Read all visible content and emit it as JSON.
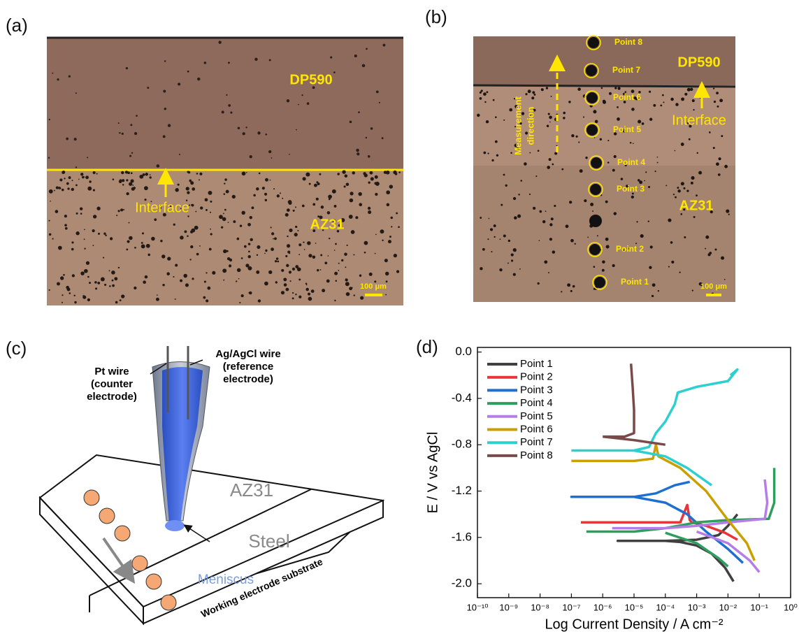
{
  "panel_labels": [
    "(a)",
    "(b)",
    "(c)",
    "(d)"
  ],
  "micrograph_a": {
    "top": "DP590",
    "interface": "Interface",
    "bottom": "AZ31",
    "scale": "100 μm"
  },
  "micrograph_b": {
    "points": [
      "Point 1",
      "Point 2",
      "Point 3",
      "Point 4",
      "Point 5",
      "Point 6",
      "Point 7",
      "Point 8"
    ],
    "top": "DP590",
    "bottom": "AZ31",
    "interface": "Interface",
    "direction": [
      "Measurement",
      "direction"
    ],
    "scale": "100 μm"
  },
  "schematic_c": {
    "pt_wire": [
      "Pt wire",
      "(counter",
      "electrode)"
    ],
    "ref_wire": [
      "Ag/AgCl wire",
      "(reference",
      "electrode)"
    ],
    "top": "AZ31",
    "bottom": "Steel",
    "meniscus": "Meniscus",
    "substrate": "Working electrode substrate"
  },
  "chart_data": {
    "type": "line",
    "xlabel": "Log Current Density / A cm⁻²",
    "ylabel": "E / V vs AgCl",
    "xscale": "log",
    "legend": "upper left",
    "xlim": [
      1e-10,
      1
    ],
    "ylim": [
      -2.12,
      0.04
    ],
    "xticks": [
      {
        "value": 1e-10,
        "label": "10⁻¹⁰"
      },
      {
        "value": 1e-09,
        "label": "10⁻⁹"
      },
      {
        "value": 1e-08,
        "label": "10⁻⁸"
      },
      {
        "value": 1e-07,
        "label": "10⁻⁷"
      },
      {
        "value": 1e-06,
        "label": "10⁻⁶"
      },
      {
        "value": 1e-05,
        "label": "10⁻⁵"
      },
      {
        "value": 0.0001,
        "label": "10⁻⁴"
      },
      {
        "value": 0.001,
        "label": "10⁻³"
      },
      {
        "value": 0.01,
        "label": "10⁻²"
      },
      {
        "value": 0.1,
        "label": "10⁻¹"
      },
      {
        "value": 1,
        "label": "10⁰"
      }
    ],
    "yticks": [
      {
        "value": 0,
        "label": "0.0"
      },
      -0.4,
      -0.8,
      {
        "value": -1.2,
        "label": "-1.2"
      },
      {
        "value": -1.6,
        "label": "-1.6"
      },
      {
        "value": -2,
        "label": "-2.0"
      }
    ],
    "series": [
      {
        "name": "Point 1",
        "color": "#404040",
        "x": [
          0.015,
          0.008,
          0.003,
          0.001,
          0.0003,
          0.0001,
          3e-06,
          0.0001,
          0.001,
          0.005,
          0.01,
          0.02
        ],
        "values": [
          -1.98,
          -1.86,
          -1.74,
          -1.67,
          -1.64,
          -1.63,
          -1.63,
          -1.63,
          -1.62,
          -1.58,
          -1.5,
          -1.4
        ]
      },
      {
        "name": "Point 2",
        "color": "#e8353a",
        "x": [
          2e-07,
          1e-05,
          0.0003,
          0.0005,
          0.0006,
          0.0007,
          0.002,
          0.008,
          0.02
        ],
        "values": [
          -1.47,
          -1.47,
          -1.47,
          -1.32,
          -1.45,
          -1.47,
          -1.5,
          -1.56,
          -1.62
        ]
      },
      {
        "name": "Point 3",
        "color": "#1f6fd1",
        "x": [
          0.0006,
          0.0002,
          5e-05,
          1e-05,
          1e-07,
          1e-05,
          0.0001,
          0.0005,
          0.002,
          0.01,
          0.03
        ],
        "values": [
          -1.12,
          -1.15,
          -1.22,
          -1.25,
          -1.25,
          -1.25,
          -1.3,
          -1.4,
          -1.55,
          -1.7,
          -1.82
        ]
      },
      {
        "name": "Point 4",
        "color": "#2e9e5e",
        "x": [
          3e-07,
          1e-05,
          0.0001,
          0.001,
          0.01,
          0.2,
          0.3,
          0.3,
          null,
          0.0001,
          0.001,
          0.005,
          0.01
        ],
        "values": [
          -1.55,
          -1.55,
          -1.52,
          -1.47,
          -1.45,
          -1.44,
          -1.3,
          -1.0,
          null,
          -1.56,
          -1.65,
          -1.78,
          -1.85
        ]
      },
      {
        "name": "Point 5",
        "color": "#b57de8",
        "x": [
          2e-06,
          0.0001,
          0.001,
          0.01,
          0.15,
          0.18,
          0.15,
          null,
          0.001,
          0.01,
          0.05,
          0.1
        ],
        "values": [
          -1.52,
          -1.52,
          -1.5,
          -1.47,
          -1.44,
          -1.3,
          -1.1,
          null,
          -1.55,
          -1.65,
          -1.8,
          -1.9
        ]
      },
      {
        "name": "Point 6",
        "color": "#c9a000",
        "x": [
          1e-07,
          1e-05,
          4e-05,
          5e-05,
          6e-05,
          0.0003,
          0.002,
          0.01,
          0.04,
          0.07
        ],
        "values": [
          -0.94,
          -0.94,
          -0.92,
          -0.8,
          -0.9,
          -1.0,
          -1.2,
          -1.45,
          -1.65,
          -1.8
        ]
      },
      {
        "name": "Point 7",
        "color": "#2ecfcf",
        "x": [
          1e-07,
          1e-05,
          3e-05,
          5e-05,
          0.0001,
          0.0002,
          0.00025,
          0.001,
          0.01,
          0.02,
          0.012,
          null,
          1e-05,
          0.0001,
          0.0005,
          0.003
        ],
        "values": [
          -0.85,
          -0.85,
          -0.82,
          -0.7,
          -0.6,
          -0.45,
          -0.35,
          -0.3,
          -0.25,
          -0.15,
          -0.2,
          null,
          -0.85,
          -0.9,
          -1.0,
          -1.15
        ]
      },
      {
        "name": "Point 8",
        "color": "#7a4a4a",
        "x": [
          1e-06,
          5e-06,
          1e-05,
          1e-05,
          9e-06,
          8e-06,
          null,
          1e-06,
          1e-05,
          0.0001
        ],
        "values": [
          -0.73,
          -0.73,
          -0.7,
          -0.5,
          -0.3,
          -0.1,
          null,
          -0.73,
          -0.76,
          -0.8
        ]
      }
    ]
  }
}
